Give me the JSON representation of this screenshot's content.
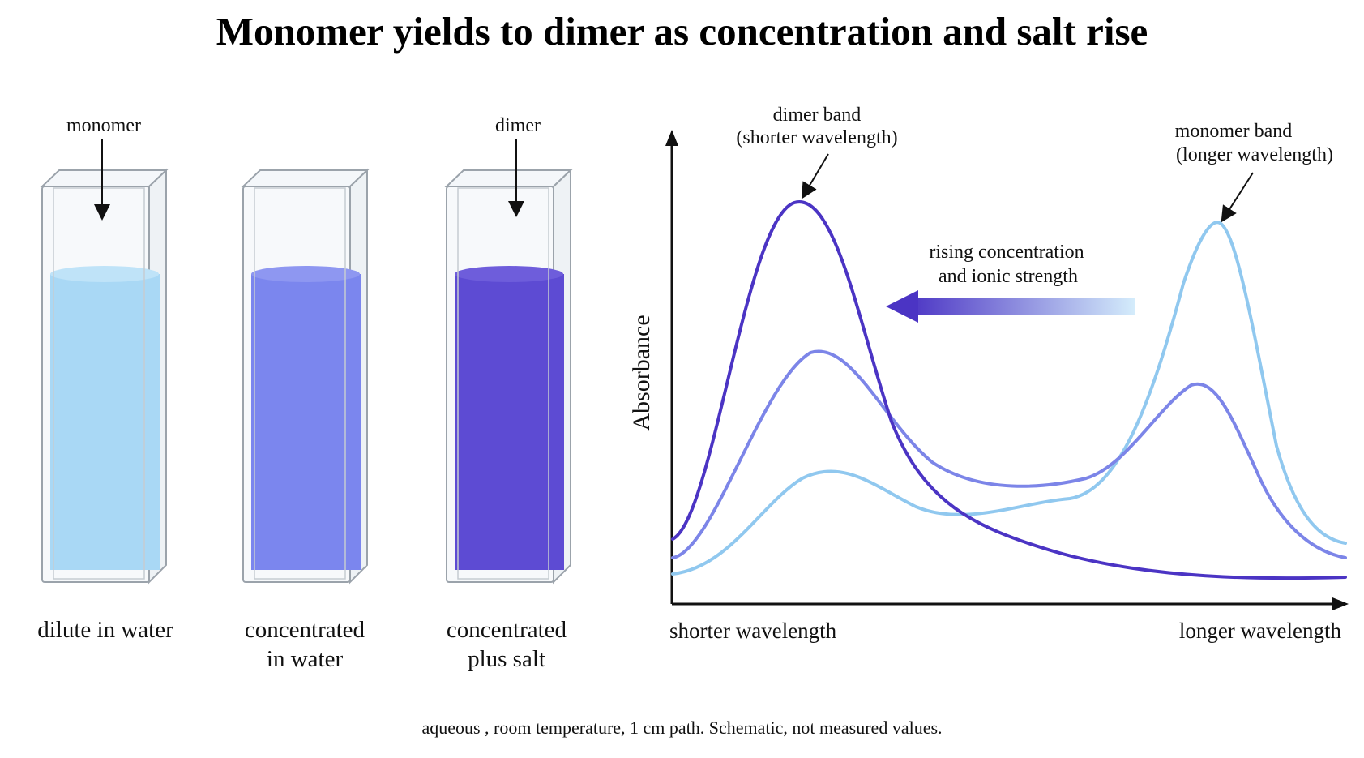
{
  "title": "Monomer yields to dimer as concentration and salt rise",
  "cuvettes": [
    {
      "label_lines": [
        "dilute in water"
      ],
      "fill_color": "#a9d8f5",
      "pointer": "monomer"
    },
    {
      "label_lines": [
        "concentrated",
        "in water"
      ],
      "fill_color": "#7b86ee",
      "pointer": ""
    },
    {
      "label_lines": [
        "concentrated",
        "plus salt"
      ],
      "fill_color": "#5d4bd3",
      "pointer": "dimer"
    }
  ],
  "spectrum": {
    "ylabel": "Absorbance",
    "x_left_label": "shorter wavelength",
    "x_right_label": "longer wavelength",
    "dimer_annotation": [
      "dimer band",
      "(shorter wavelength)"
    ],
    "monomer_annotation": [
      "monomer band",
      "(longer wavelength)"
    ],
    "shift_annotation": [
      "rising concentration",
      "and ionic strength"
    ],
    "series_colors": {
      "dilute": "#90c8ef",
      "concentrated": "#7c85e8",
      "concentrated_salt": "#4b34c4"
    }
  },
  "footnote": "aqueous , room temperature, 1 cm path. Schematic, not measured values."
}
